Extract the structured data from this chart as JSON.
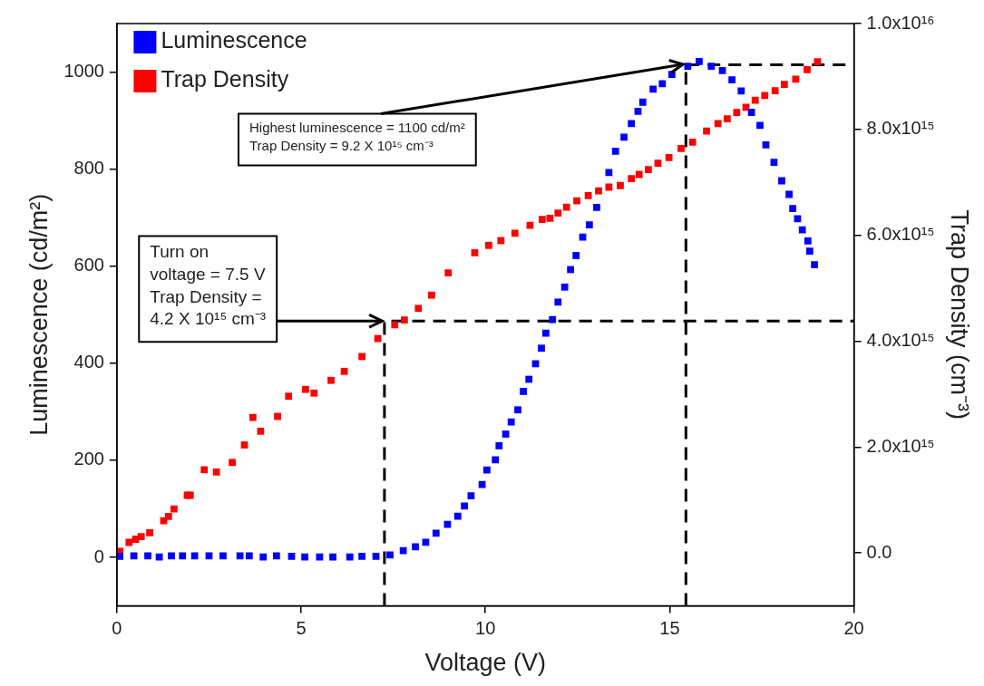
{
  "chart_data": {
    "type": "scatter",
    "xlabel": "Voltage (V)",
    "ylabel": "Luminescence (cd/m²)",
    "y2label": "Trap Density (cm⁻³)",
    "xlim": [
      0,
      20
    ],
    "xticks": [
      0,
      5,
      10,
      15,
      20
    ],
    "ylim": [
      -100,
      1100
    ],
    "yticks": [
      0,
      200,
      400,
      600,
      800,
      1000
    ],
    "y2lim": [
      -1000000000000000.0,
      1e+16
    ],
    "y2ticks": [
      {
        "value": 0,
        "label": "0.0"
      },
      {
        "value": 2000000000000000.0,
        "label": "2.0x10¹⁵"
      },
      {
        "value": 4000000000000000.0,
        "label": "4.0x10¹⁵"
      },
      {
        "value": 6000000000000000.0,
        "label": "6.0x10¹⁵"
      },
      {
        "value": 8000000000000000.0,
        "label": "8.0x10¹⁵"
      },
      {
        "value": 1e+16,
        "label": "1.0x10¹⁶"
      }
    ],
    "grid": false,
    "legend": "top left",
    "marker": "square",
    "series": [
      {
        "name": "Luminescence",
        "color": "#0000ff",
        "x": [
          0.08,
          0.46,
          0.84,
          1.15,
          1.48,
          1.78,
          2.11,
          2.5,
          2.88,
          3.34,
          3.59,
          3.97,
          4.33,
          4.74,
          5.1,
          5.5,
          5.86,
          6.32,
          6.65,
          7.03,
          7.41,
          7.77,
          8.1,
          8.38,
          8.66,
          8.97,
          9.25,
          9.43,
          9.61,
          9.91,
          10.04,
          10.27,
          10.37,
          10.55,
          10.7,
          10.88,
          11.03,
          11.18,
          11.36,
          11.52,
          11.64,
          11.82,
          11.97,
          12.15,
          12.31,
          12.46,
          12.64,
          12.82,
          13.02,
          13.35,
          13.53,
          13.76,
          13.96,
          14.14,
          14.27,
          14.55,
          14.8,
          15.06,
          15.49,
          15.8,
          16.13,
          16.43,
          16.69,
          16.94,
          17.22,
          17.45,
          17.61,
          17.83,
          18.04,
          18.24,
          18.34,
          18.47,
          18.6,
          18.75,
          18.8,
          18.93
        ],
        "values": [
          2,
          3,
          3,
          1,
          3,
          3,
          3,
          3,
          3,
          3,
          3,
          1,
          3,
          2,
          1,
          1,
          1,
          1,
          2,
          2,
          5,
          14,
          22,
          31,
          50,
          68,
          85,
          106,
          127,
          150,
          180,
          201,
          230,
          254,
          279,
          304,
          342,
          367,
          399,
          431,
          462,
          490,
          526,
          557,
          593,
          622,
          660,
          685,
          721,
          793,
          837,
          866,
          894,
          919,
          938,
          965,
          976,
          995,
          1012,
          1022,
          1012,
          1003,
          984,
          961,
          917,
          890,
          850,
          814,
          776,
          748,
          719,
          698,
          675,
          652,
          631,
          603
        ]
      },
      {
        "name": "Trap Density",
        "color": "#ff0000",
        "axis": "y2",
        "x": [
          0.08,
          0.33,
          0.51,
          0.66,
          0.89,
          1.27,
          1.4,
          1.55,
          1.91,
          1.99,
          2.37,
          2.7,
          3.13,
          3.46,
          3.69,
          3.9,
          4.36,
          4.66,
          5.12,
          5.35,
          5.81,
          6.17,
          6.65,
          7.08,
          7.54,
          7.8,
          8.18,
          8.54,
          8.99,
          9.71,
          10.09,
          10.42,
          10.8,
          11.21,
          11.54,
          11.75,
          11.97,
          12.2,
          12.48,
          12.79,
          13.07,
          13.35,
          13.66,
          13.96,
          14.17,
          14.42,
          14.68,
          14.98,
          15.31,
          15.62,
          16.0,
          16.31,
          16.56,
          16.82,
          17.07,
          17.32,
          17.58,
          17.86,
          18.11,
          18.42,
          18.73,
          19.01
        ],
        "values": [
          30000000000000.0,
          200000000000000.0,
          260000000000000.0,
          310000000000000.0,
          380000000000000.0,
          610000000000000.0,
          690000000000000.0,
          830000000000000.0,
          1090000000000000.0,
          1090000000000000.0,
          1570000000000000.0,
          1530000000000000.0,
          1710000000000000.0,
          2040000000000000.0,
          2560000000000000.0,
          2300000000000000.0,
          2580000000000000.0,
          2960000000000000.0,
          3090000000000000.0,
          3020000000000000.0,
          3260000000000000.0,
          3430000000000000.0,
          3710000000000000.0,
          4050000000000000.0,
          4310000000000000.0,
          4400000000000000.0,
          4620000000000000.0,
          4870000000000000.0,
          5290000000000000.0,
          5670000000000000.0,
          5810000000000000.0,
          5900000000000000.0,
          6040000000000000.0,
          6190000000000000.0,
          6300000000000000.0,
          6320000000000000.0,
          6420000000000000.0,
          6530000000000000.0,
          6650000000000000.0,
          6750000000000000.0,
          6840000000000000.0,
          6910000000000000.0,
          6940000000000000.0,
          7070000000000000.0,
          7150000000000000.0,
          7240000000000000.0,
          7360000000000000.0,
          7470000000000000.0,
          7640000000000000.0,
          7760000000000000.0,
          7970000000000000.0,
          8110000000000000.0,
          8200000000000000.0,
          8320000000000000.0,
          8420000000000000.0,
          8550000000000000.0,
          8640000000000000.0,
          8730000000000000.0,
          8850000000000000.0,
          8950000000000000.0,
          9130000000000000.0,
          9280000000000000.0
        ]
      },
      {
        "type": "line",
        "color": "#000000",
        "axis": "y2",
        "marker": "none",
        "line_style": "dashed",
        "x": [
          7.26,
          7.26,
          20
        ],
        "values": [
          -1000000000000000.0,
          4380000000000000.0,
          4380000000000000.0
        ]
      },
      {
        "type": "line",
        "color": "#000000",
        "marker": "none",
        "line_style": "dashed",
        "x": [
          15.44,
          15.44,
          20
        ],
        "values": [
          -100,
          1015,
          1015
        ]
      }
    ],
    "annotations": [
      {
        "text": "Turn on\nvoltage = 7.5 V\nTrap Density =\n4.2 X 10¹⁵ cm⁻³",
        "x": 7.2,
        "y": 487
      },
      {
        "text": "Highest luminescence = 1100 cd/m²\nTrap Density = 9.2 X 10¹⁵ cm⁻³",
        "x": 15.36,
        "y": 1016
      }
    ]
  }
}
